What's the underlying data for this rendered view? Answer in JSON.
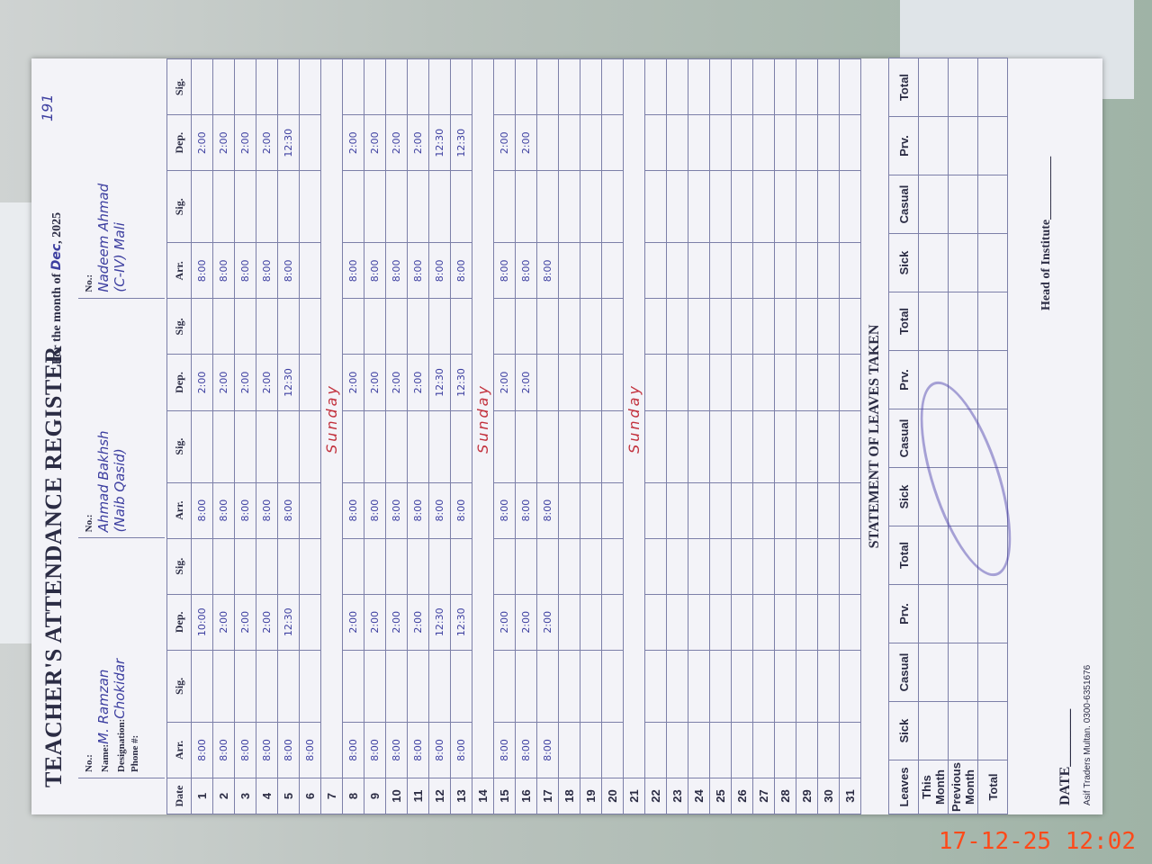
{
  "page_number": "191",
  "header": {
    "title": "TEACHER'S ATTENDANCE REGISTER",
    "month_label": "For the month of",
    "month": "Dec",
    "year": "2025",
    "no_label": "No.:",
    "name_label": "Name:",
    "designation_label": "Designation:",
    "phone_label": "Phone #:"
  },
  "teachers": [
    {
      "name": "M. Ramzan",
      "designation": "Chokidar"
    },
    {
      "name": "Ahmad Bakhsh",
      "designation": "(Naib Qasid)"
    },
    {
      "name": "Nadeem Ahmad",
      "designation": "(C-IV) Mali"
    }
  ],
  "table": {
    "date_header": "Date",
    "columns": [
      "Arr.",
      "Sig.",
      "Dep.",
      "Sig."
    ],
    "rows": [
      {
        "date": "1",
        "times": [
          [
            "8:00",
            "10:00"
          ],
          [
            "8:00",
            "2:00"
          ],
          [
            "8:00",
            "2:00"
          ]
        ]
      },
      {
        "date": "2",
        "times": [
          [
            "8:00",
            "2:00"
          ],
          [
            "8:00",
            "2:00"
          ],
          [
            "8:00",
            "2:00"
          ]
        ]
      },
      {
        "date": "3",
        "times": [
          [
            "8:00",
            "2:00"
          ],
          [
            "8:00",
            "2:00"
          ],
          [
            "8:00",
            "2:00"
          ]
        ]
      },
      {
        "date": "4",
        "times": [
          [
            "8:00",
            "2:00"
          ],
          [
            "8:00",
            "2:00"
          ],
          [
            "8:00",
            "2:00"
          ]
        ]
      },
      {
        "date": "5",
        "times": [
          [
            "8:00",
            "12:30"
          ],
          [
            "8:00",
            "12:30"
          ],
          [
            "8:00",
            "12:30"
          ]
        ]
      },
      {
        "date": "6",
        "times": [
          [
            "8:00"
          ]
        ]
      },
      {
        "date": "7",
        "note": "Sunday"
      },
      {
        "date": "8",
        "times": [
          [
            "8:00",
            "2:00"
          ],
          [
            "8:00",
            "2:00"
          ],
          [
            "8:00",
            "2:00"
          ]
        ]
      },
      {
        "date": "9",
        "times": [
          [
            "8:00",
            "2:00"
          ],
          [
            "8:00",
            "2:00"
          ],
          [
            "8:00",
            "2:00"
          ]
        ]
      },
      {
        "date": "10",
        "times": [
          [
            "8:00",
            "2:00"
          ],
          [
            "8:00",
            "2:00"
          ],
          [
            "8:00",
            "2:00"
          ]
        ]
      },
      {
        "date": "11",
        "times": [
          [
            "8:00",
            "2:00"
          ],
          [
            "8:00",
            "2:00"
          ],
          [
            "8:00",
            "2:00"
          ]
        ]
      },
      {
        "date": "12",
        "times": [
          [
            "8:00",
            "12:30"
          ],
          [
            "8:00",
            "12:30"
          ],
          [
            "8:00",
            "12:30"
          ]
        ]
      },
      {
        "date": "13",
        "times": [
          [
            "8:00",
            "12:30"
          ],
          [
            "8:00",
            "12:30"
          ],
          [
            "8:00",
            "12:30"
          ]
        ]
      },
      {
        "date": "14",
        "note": "Sunday"
      },
      {
        "date": "15",
        "times": [
          [
            "8:00",
            "2:00"
          ],
          [
            "8:00",
            "2:00"
          ],
          [
            "8:00",
            "2:00"
          ]
        ]
      },
      {
        "date": "16",
        "times": [
          [
            "8:00",
            "2:00"
          ],
          [
            "8:00",
            "2:00"
          ],
          [
            "8:00",
            "2:00"
          ]
        ]
      },
      {
        "date": "17",
        "times": [
          [
            "8:00",
            "2:00"
          ],
          [
            "8:00"
          ],
          [
            "8:00"
          ]
        ]
      },
      {
        "date": "18"
      },
      {
        "date": "19"
      },
      {
        "date": "20"
      },
      {
        "date": "21",
        "note": "Sunday"
      },
      {
        "date": "22"
      },
      {
        "date": "23"
      },
      {
        "date": "24"
      },
      {
        "date": "25"
      },
      {
        "date": "26"
      },
      {
        "date": "27"
      },
      {
        "date": "28"
      },
      {
        "date": "29"
      },
      {
        "date": "30"
      },
      {
        "date": "31"
      }
    ]
  },
  "statement": {
    "title": "STATEMENT OF LEAVES TAKEN",
    "corner": "Leaves",
    "columns": [
      "Sick",
      "Casual",
      "Prv.",
      "Total"
    ],
    "rows": [
      "This Month",
      "Previous Month",
      "Total"
    ]
  },
  "footer": {
    "date_label": "DATE",
    "head": "Head of Institute",
    "printer": "Asif Traders Multan. 0300-6351676"
  },
  "timestamp": "17-12-25 12:02"
}
